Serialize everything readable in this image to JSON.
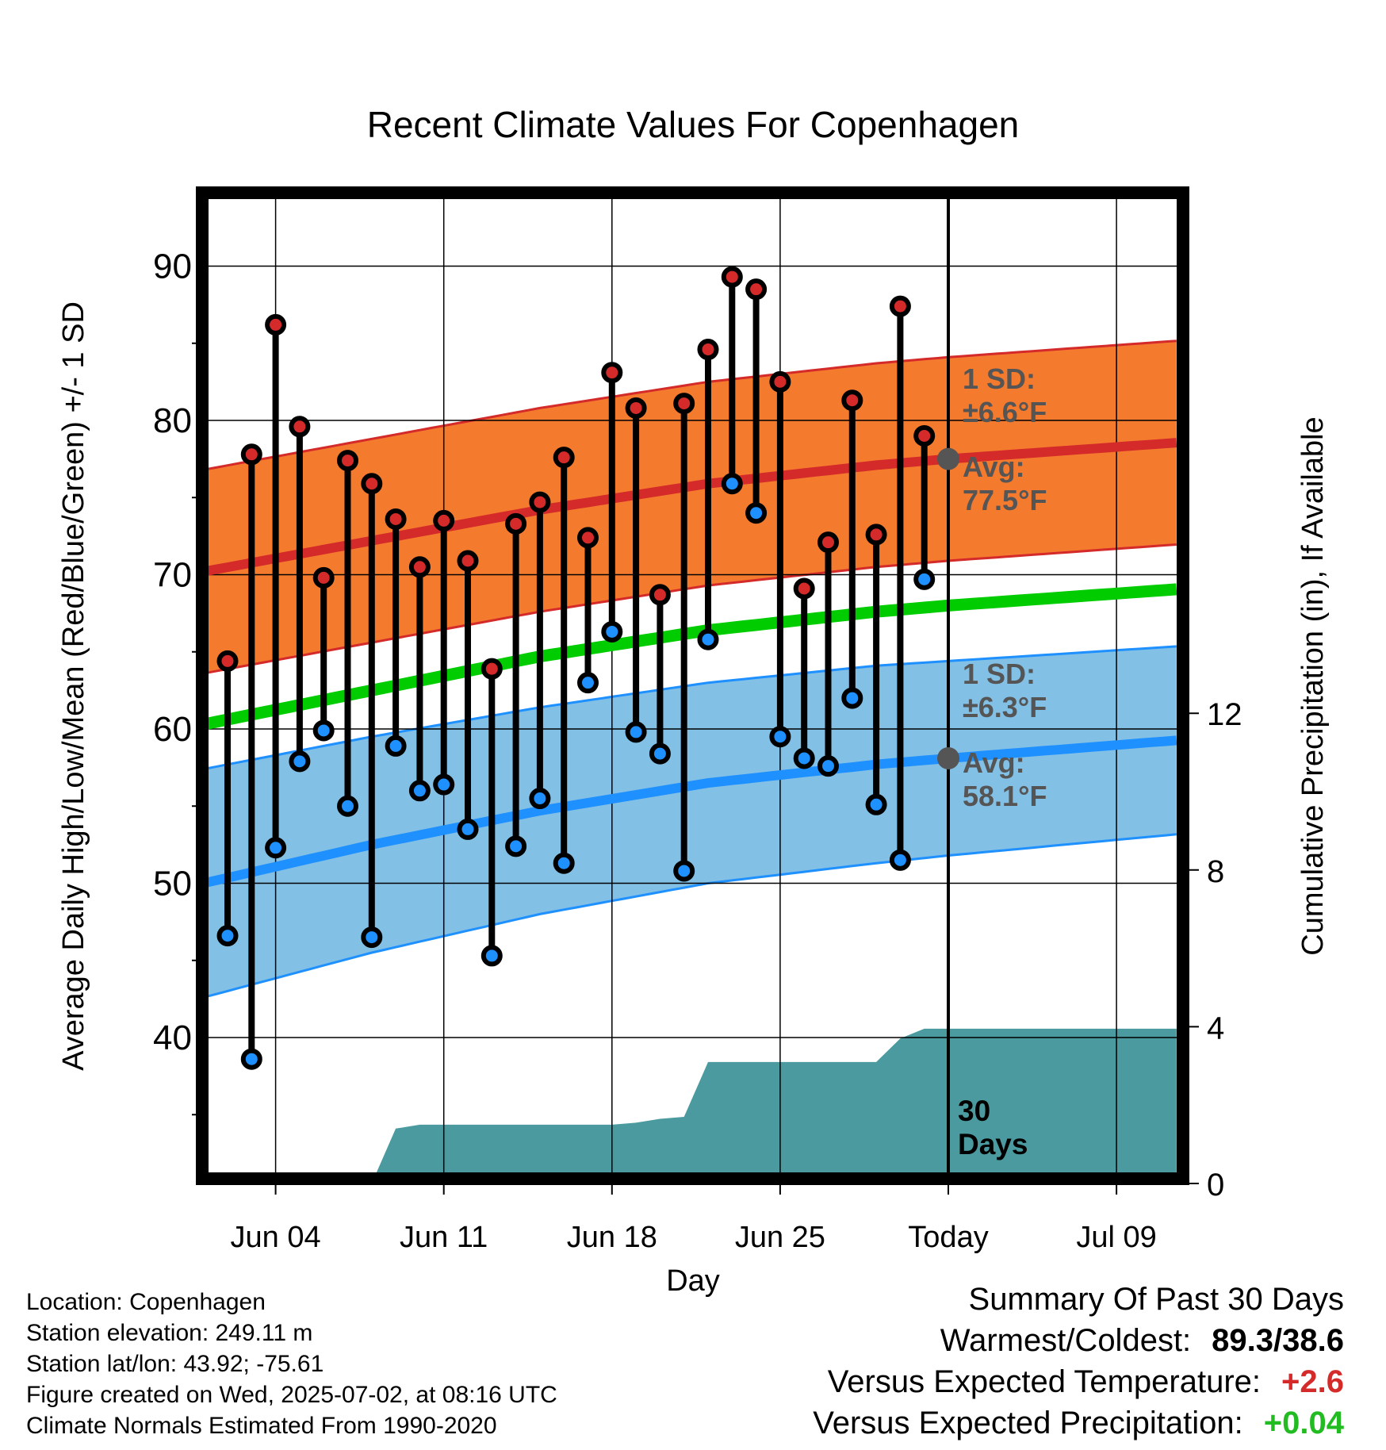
{
  "chart_data": {
    "type": "line",
    "title": "Recent Climate Values For Copenhagen",
    "xlabel": "Day",
    "ylabel_left": "Average Daily High/Low/Mean (Red/Blue/Green) +/- 1 SD",
    "ylabel_right": "Cumulative Precipitation (in), If Available",
    "x_tick_labels": [
      "Jun 04",
      "Jun 11",
      "Jun 18",
      "Jun 25",
      "Today",
      "Jul 09"
    ],
    "y_ticks_left": [
      "40",
      "50",
      "60",
      "70",
      "80",
      "90"
    ],
    "y_ticks_right": [
      "0",
      "4",
      "8",
      "12"
    ],
    "ylim_left": [
      30,
      95
    ],
    "ylim_right": [
      0,
      25
    ],
    "xlim_days": [
      -31.5,
      9.5
    ],
    "today_label": [
      "30",
      "Days"
    ],
    "colors": {
      "high": "#d42a2a",
      "low": "#1e90ff",
      "mean": "#00cc00",
      "high_band": "#f47a2e",
      "low_band": "#82c0e6",
      "precip": "#4a9aa0"
    },
    "normals": {
      "day": [
        -31,
        -24,
        -17,
        -10,
        -3,
        0,
        9
      ],
      "high_mean": [
        70.2,
        72.2,
        74.2,
        75.9,
        77.1,
        77.5,
        78.5
      ],
      "high_sd": [
        6.6,
        6.6,
        6.6,
        6.6,
        6.6,
        6.6,
        6.6
      ],
      "low_mean": [
        50.0,
        52.5,
        54.7,
        56.5,
        57.7,
        58.1,
        59.2
      ],
      "low_sd": [
        7.4,
        7.0,
        6.7,
        6.5,
        6.4,
        6.3,
        6.1
      ],
      "mean": [
        60.3,
        62.5,
        64.7,
        66.4,
        67.6,
        68.0,
        69.0
      ]
    },
    "annotations": {
      "high_sd": "±6.6°F",
      "high_avg": "77.5°F",
      "low_sd": "±6.3°F",
      "low_avg": "58.1°F",
      "sd_label": "1 SD:",
      "avg_label": "Avg:"
    },
    "days": {
      "day": [
        -30,
        -29,
        -28,
        -27,
        -26,
        -25,
        -24,
        -23,
        -22,
        -21,
        -20,
        -19,
        -18,
        -17,
        -16,
        -15,
        -14,
        -13,
        -12,
        -11,
        -10,
        -9,
        -8,
        -7,
        -6,
        -5,
        -4,
        -3,
        -2,
        -1
      ],
      "high": [
        64.4,
        77.8,
        86.2,
        79.6,
        69.8,
        77.4,
        75.9,
        73.6,
        70.5,
        73.5,
        70.9,
        63.9,
        73.3,
        74.7,
        77.6,
        72.4,
        83.1,
        80.8,
        68.7,
        81.1,
        84.6,
        89.3,
        88.5,
        82.5,
        69.1,
        72.1,
        81.3,
        72.6,
        87.4,
        79.0
      ],
      "low": [
        46.6,
        38.6,
        52.3,
        57.9,
        59.9,
        55.0,
        46.5,
        58.9,
        56.0,
        56.4,
        53.5,
        45.3,
        52.4,
        55.5,
        51.3,
        63.0,
        66.3,
        59.8,
        58.4,
        50.8,
        65.8,
        75.9,
        74.0,
        59.5,
        58.1,
        57.6,
        62.0,
        55.1,
        51.5,
        69.7
      ]
    },
    "precip": {
      "day": [
        -31.5,
        -24,
        -23,
        -22,
        -15,
        -14,
        -13,
        -12,
        -11,
        -10,
        -3,
        -2,
        -1,
        0,
        9.5
      ],
      "cumulative": [
        0,
        0,
        1.4,
        1.5,
        1.5,
        1.5,
        1.55,
        1.65,
        1.7,
        3.1,
        3.1,
        3.7,
        3.95,
        3.95,
        3.95
      ]
    }
  },
  "footer": {
    "location": "Location: Copenhagen",
    "elevation": "Station elevation: 249.11 m",
    "latlon": "Station lat/lon: 43.92; -75.61",
    "created": "Figure created on Wed, 2025-07-02, at 08:16 UTC",
    "normals": "Climate Normals Estimated From 1990-2020"
  },
  "summary": {
    "title": "Summary Of Past 30 Days",
    "warmest_label": "Warmest/Coldest:",
    "warmest_value": "89.3/38.6",
    "temp_label": "Versus Expected Temperature:",
    "temp_value": "+2.6",
    "temp_color": "#d42a2a",
    "precip_label": "Versus Expected Precipitation:",
    "precip_value": "+0.04",
    "precip_color": "#22bb22"
  }
}
